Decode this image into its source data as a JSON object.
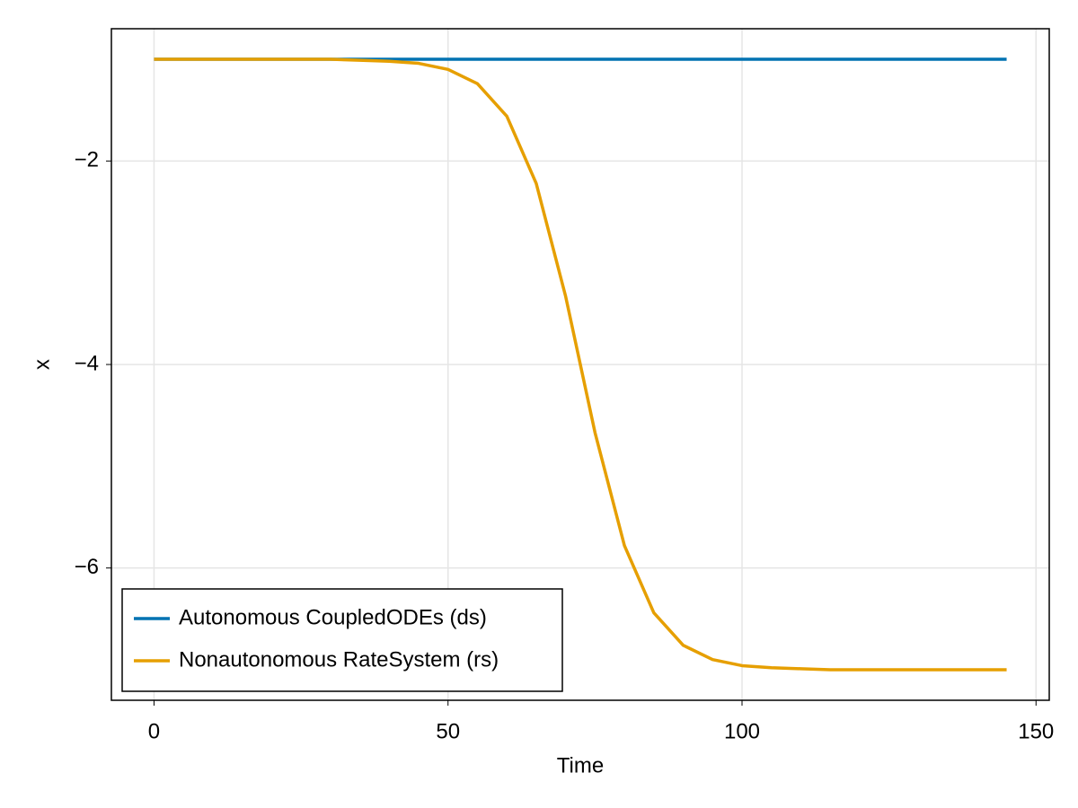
{
  "chart_data": {
    "type": "line",
    "xlabel": "Time",
    "ylabel": "x",
    "x": [
      0,
      5,
      10,
      15,
      20,
      25,
      30,
      35,
      40,
      45,
      50,
      55,
      60,
      65,
      70,
      75,
      80,
      85,
      90,
      95,
      100,
      105,
      110,
      115,
      120,
      125,
      130,
      135,
      140,
      145
    ],
    "series": [
      {
        "name": "Autonomous CoupledODEs (ds)",
        "color": "#0072b2",
        "values": [
          -1,
          -1,
          -1,
          -1,
          -1,
          -1,
          -1,
          -1,
          -1,
          -1,
          -1,
          -1,
          -1,
          -1,
          -1,
          -1,
          -1,
          -1,
          -1,
          -1,
          -1,
          -1,
          -1,
          -1,
          -1,
          -1,
          -1,
          -1,
          -1,
          -1
        ]
      },
      {
        "name": "Nonautonomous RateSystem (rs)",
        "color": "#e69f00",
        "values": [
          -1,
          -1,
          -1,
          -1,
          -1,
          -1,
          -1,
          -1.01,
          -1.02,
          -1.04,
          -1.1,
          -1.24,
          -1.56,
          -2.22,
          -3.33,
          -4.67,
          -5.78,
          -6.44,
          -6.76,
          -6.9,
          -6.96,
          -6.98,
          -6.99,
          -7,
          -7,
          -7,
          -7,
          -7,
          -7,
          -7
        ]
      }
    ],
    "xlim": [
      -7.25,
      152.25
    ],
    "ylim": [
      -7.3,
      -0.7
    ],
    "xticks": [
      0,
      50,
      100,
      150
    ],
    "yticks": [
      {
        "value": -2,
        "label": "−2"
      },
      {
        "value": -4,
        "label": "−4"
      },
      {
        "value": -6,
        "label": "−6"
      }
    ],
    "grid": true,
    "legend_position": "bottom-left"
  }
}
